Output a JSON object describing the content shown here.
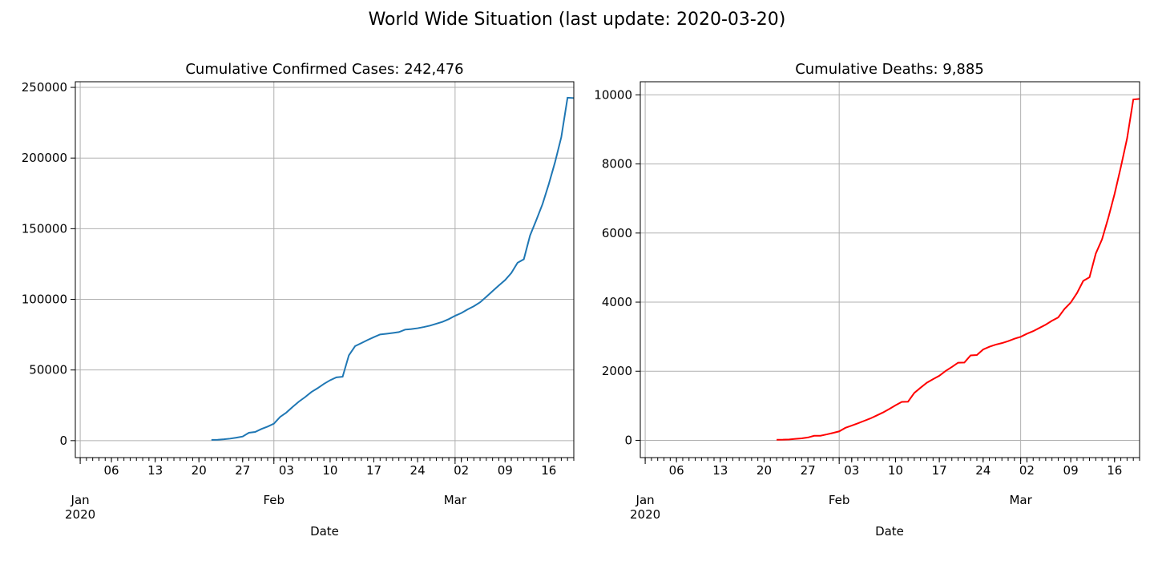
{
  "suptitle": "World Wide Situation (last update: 2020-03-20)",
  "chart_data": [
    {
      "type": "line",
      "title": "Cumulative Confirmed Cases: 242,476",
      "xlabel": "Date",
      "ylabel": "",
      "xlim": [
        "2020-01-21",
        "2020-03-20"
      ],
      "ylim": [
        -12000,
        254000
      ],
      "yticks": [
        0,
        50000,
        100000,
        150000,
        200000,
        250000
      ],
      "grid": true,
      "color": "#1f77b4",
      "series": [
        {
          "x": [
            "2020-01-22",
            "2020-01-23",
            "2020-01-24",
            "2020-01-25",
            "2020-01-26",
            "2020-01-27",
            "2020-01-28",
            "2020-01-29",
            "2020-01-30",
            "2020-01-31",
            "2020-02-01",
            "2020-02-02",
            "2020-02-03",
            "2020-02-04",
            "2020-02-05",
            "2020-02-06",
            "2020-02-07",
            "2020-02-08",
            "2020-02-09",
            "2020-02-10",
            "2020-02-11",
            "2020-02-12",
            "2020-02-13",
            "2020-02-14",
            "2020-02-15",
            "2020-02-16",
            "2020-02-17",
            "2020-02-18",
            "2020-02-19",
            "2020-02-20",
            "2020-02-21",
            "2020-02-22",
            "2020-02-23",
            "2020-02-24",
            "2020-02-25",
            "2020-02-26",
            "2020-02-27",
            "2020-02-28",
            "2020-02-29",
            "2020-03-01",
            "2020-03-02",
            "2020-03-03",
            "2020-03-04",
            "2020-03-05",
            "2020-03-06",
            "2020-03-07",
            "2020-03-08",
            "2020-03-09",
            "2020-03-10",
            "2020-03-11",
            "2020-03-12",
            "2020-03-13",
            "2020-03-14",
            "2020-03-15",
            "2020-03-16",
            "2020-03-17",
            "2020-03-18",
            "2020-03-19",
            "2020-03-20"
          ],
          "y": [
            555,
            654,
            941,
            1434,
            2118,
            2927,
            5578,
            6166,
            8234,
            9927,
            12038,
            16787,
            19881,
            23892,
            27635,
            30817,
            34391,
            37120,
            40150,
            42762,
            44802,
            45221,
            60368,
            66885,
            69030,
            71224,
            73258,
            75136,
            75639,
            76197,
            76819,
            78572,
            78958,
            79561,
            80406,
            81388,
            82746,
            84112,
            86011,
            88369,
            90306,
            92840,
            95120,
            97886,
            101801,
            105847,
            109821,
            113590,
            118620,
            125875,
            128352,
            145205,
            156101,
            167454,
            181574,
            197102,
            214821,
            242713,
            242476
          ]
        }
      ]
    },
    {
      "type": "line",
      "title": "Cumulative Deaths: 9,885",
      "xlabel": "Date",
      "ylabel": "",
      "xlim": [
        "2020-01-21",
        "2020-03-20"
      ],
      "ylim": [
        -500,
        10380
      ],
      "yticks": [
        0,
        2000,
        4000,
        6000,
        8000,
        10000
      ],
      "grid": true,
      "color": "#ff0000",
      "series": [
        {
          "x": [
            "2020-01-22",
            "2020-01-23",
            "2020-01-24",
            "2020-01-25",
            "2020-01-26",
            "2020-01-27",
            "2020-01-28",
            "2020-01-29",
            "2020-01-30",
            "2020-01-31",
            "2020-02-01",
            "2020-02-02",
            "2020-02-03",
            "2020-02-04",
            "2020-02-05",
            "2020-02-06",
            "2020-02-07",
            "2020-02-08",
            "2020-02-09",
            "2020-02-10",
            "2020-02-11",
            "2020-02-12",
            "2020-02-13",
            "2020-02-14",
            "2020-02-15",
            "2020-02-16",
            "2020-02-17",
            "2020-02-18",
            "2020-02-19",
            "2020-02-20",
            "2020-02-21",
            "2020-02-22",
            "2020-02-23",
            "2020-02-24",
            "2020-02-25",
            "2020-02-26",
            "2020-02-27",
            "2020-02-28",
            "2020-02-29",
            "2020-03-01",
            "2020-03-02",
            "2020-03-03",
            "2020-03-04",
            "2020-03-05",
            "2020-03-06",
            "2020-03-07",
            "2020-03-08",
            "2020-03-09",
            "2020-03-10",
            "2020-03-11",
            "2020-03-12",
            "2020-03-13",
            "2020-03-14",
            "2020-03-15",
            "2020-03-16",
            "2020-03-17",
            "2020-03-18",
            "2020-03-19",
            "2020-03-20"
          ],
          "y": [
            17,
            18,
            26,
            42,
            56,
            82,
            131,
            133,
            171,
            213,
            259,
            362,
            426,
            492,
            564,
            634,
            719,
            806,
            906,
            1013,
            1113,
            1118,
            1371,
            1523,
            1666,
            1770,
            1868,
            2007,
            2122,
            2247,
            2251,
            2458,
            2469,
            2629,
            2708,
            2770,
            2814,
            2872,
            2941,
            2996,
            3085,
            3160,
            3254,
            3348,
            3460,
            3558,
            3802,
            3988,
            4262,
            4615,
            4720,
            5404,
            5819,
            6440,
            7126,
            7905,
            8733,
            9867,
            9885
          ]
        }
      ]
    }
  ],
  "xaxis": {
    "day_ticks": [
      "06",
      "13",
      "20",
      "27",
      "03",
      "10",
      "17",
      "24",
      "02",
      "09",
      "16"
    ],
    "month_ticks": [
      "Jan\n2020",
      "Feb",
      "Mar"
    ]
  }
}
